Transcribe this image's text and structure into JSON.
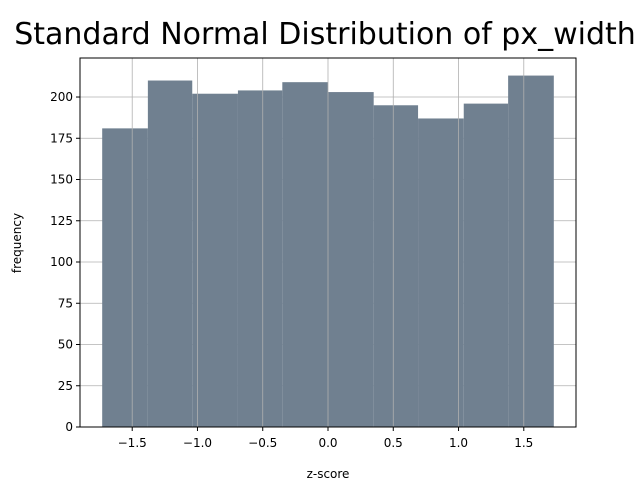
{
  "chart_data": {
    "type": "bar",
    "title": "Standard Normal Distribution of px_width",
    "xlabel": "z-score",
    "ylabel": "frequency",
    "bin_edges": [
      -1.73,
      -1.38,
      -1.04,
      -0.69,
      -0.35,
      0.0,
      0.35,
      0.69,
      1.04,
      1.38,
      1.73
    ],
    "values": [
      181,
      210,
      202,
      204,
      209,
      203,
      195,
      187,
      196,
      213
    ],
    "xlim": [
      -1.9,
      1.9
    ],
    "ylim": [
      0,
      223.65
    ],
    "xticks": [
      -1.5,
      -1.0,
      -0.5,
      0.0,
      0.5,
      1.0,
      1.5
    ],
    "xtick_labels": [
      "−1.5",
      "−1.0",
      "−0.5",
      "0.0",
      "0.5",
      "1.0",
      "1.5"
    ],
    "yticks": [
      0,
      25,
      50,
      75,
      100,
      125,
      150,
      175,
      200
    ],
    "ytick_labels": [
      "0",
      "25",
      "50",
      "75",
      "100",
      "125",
      "150",
      "175",
      "200"
    ],
    "grid": true,
    "bar_color": "#708090",
    "grid_color": "#b0b0b0"
  }
}
